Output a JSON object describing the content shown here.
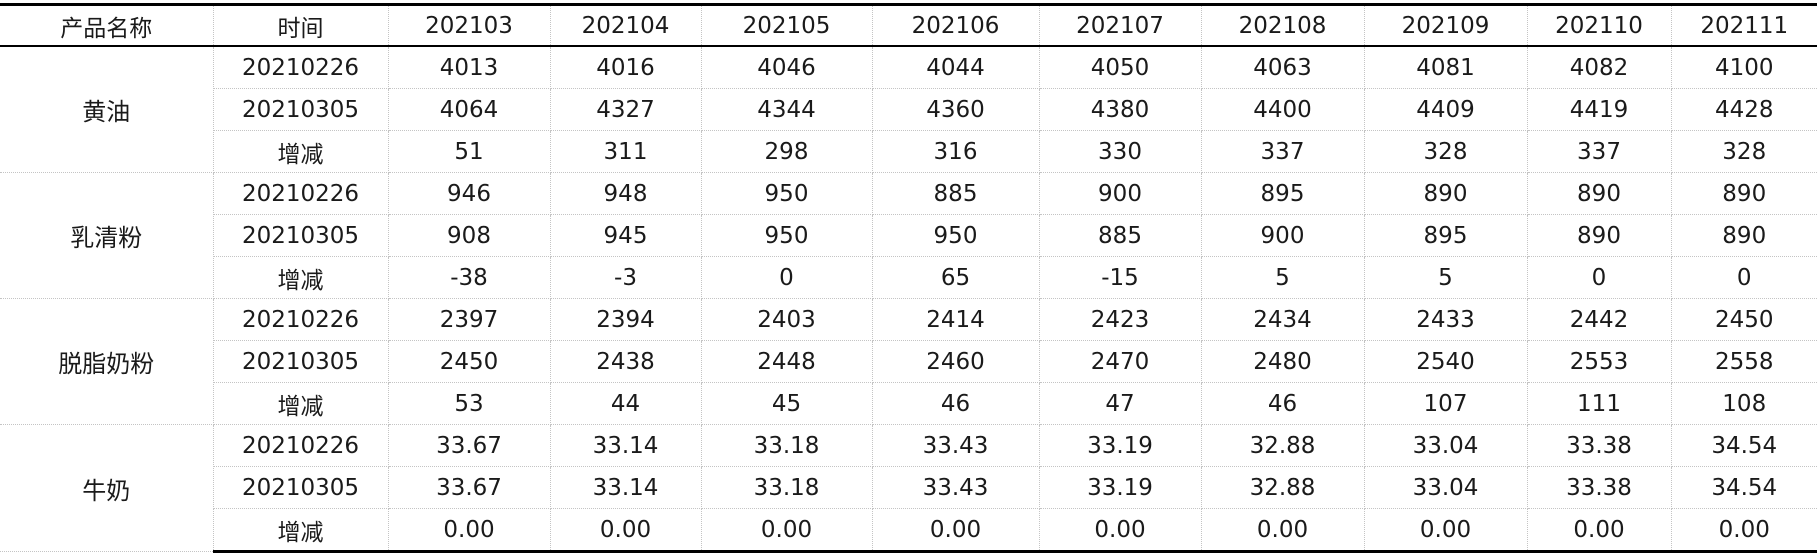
{
  "header": {
    "product": "产品名称",
    "time": "时间",
    "months": [
      "202103",
      "202104",
      "202105",
      "202106",
      "202107",
      "202108",
      "202109",
      "202110",
      "202111"
    ]
  },
  "groups": [
    {
      "name": "黄油",
      "rows": [
        {
          "time": "20210226",
          "values": [
            "4013",
            "4016",
            "4046",
            "4044",
            "4050",
            "4063",
            "4081",
            "4082",
            "4100"
          ]
        },
        {
          "time": "20210305",
          "values": [
            "4064",
            "4327",
            "4344",
            "4360",
            "4380",
            "4400",
            "4409",
            "4419",
            "4428"
          ]
        },
        {
          "time": "增减",
          "values": [
            "51",
            "311",
            "298",
            "316",
            "330",
            "337",
            "328",
            "337",
            "328"
          ]
        }
      ]
    },
    {
      "name": "乳清粉",
      "rows": [
        {
          "time": "20210226",
          "values": [
            "946",
            "948",
            "950",
            "885",
            "900",
            "895",
            "890",
            "890",
            "890"
          ]
        },
        {
          "time": "20210305",
          "values": [
            "908",
            "945",
            "950",
            "950",
            "885",
            "900",
            "895",
            "890",
            "890"
          ]
        },
        {
          "time": "增减",
          "values": [
            "-38",
            "-3",
            "0",
            "65",
            "-15",
            "5",
            "5",
            "0",
            "0"
          ]
        }
      ]
    },
    {
      "name": "脱脂奶粉",
      "rows": [
        {
          "time": "20210226",
          "values": [
            "2397",
            "2394",
            "2403",
            "2414",
            "2423",
            "2434",
            "2433",
            "2442",
            "2450"
          ]
        },
        {
          "time": "20210305",
          "values": [
            "2450",
            "2438",
            "2448",
            "2460",
            "2470",
            "2480",
            "2540",
            "2553",
            "2558"
          ]
        },
        {
          "time": "增减",
          "values": [
            "53",
            "44",
            "45",
            "46",
            "47",
            "46",
            "107",
            "111",
            "108"
          ]
        }
      ]
    },
    {
      "name": "牛奶",
      "rows": [
        {
          "time": "20210226",
          "values": [
            "33.67",
            "33.14",
            "33.18",
            "33.43",
            "33.19",
            "32.88",
            "33.04",
            "33.38",
            "34.54"
          ]
        },
        {
          "time": "20210305",
          "values": [
            "33.67",
            "33.14",
            "33.18",
            "33.43",
            "33.19",
            "32.88",
            "33.04",
            "33.38",
            "34.54"
          ]
        },
        {
          "time": "增减",
          "values": [
            "0.00",
            "0.00",
            "0.00",
            "0.00",
            "0.00",
            "0.00",
            "0.00",
            "0.00",
            "0.00"
          ]
        }
      ]
    }
  ]
}
